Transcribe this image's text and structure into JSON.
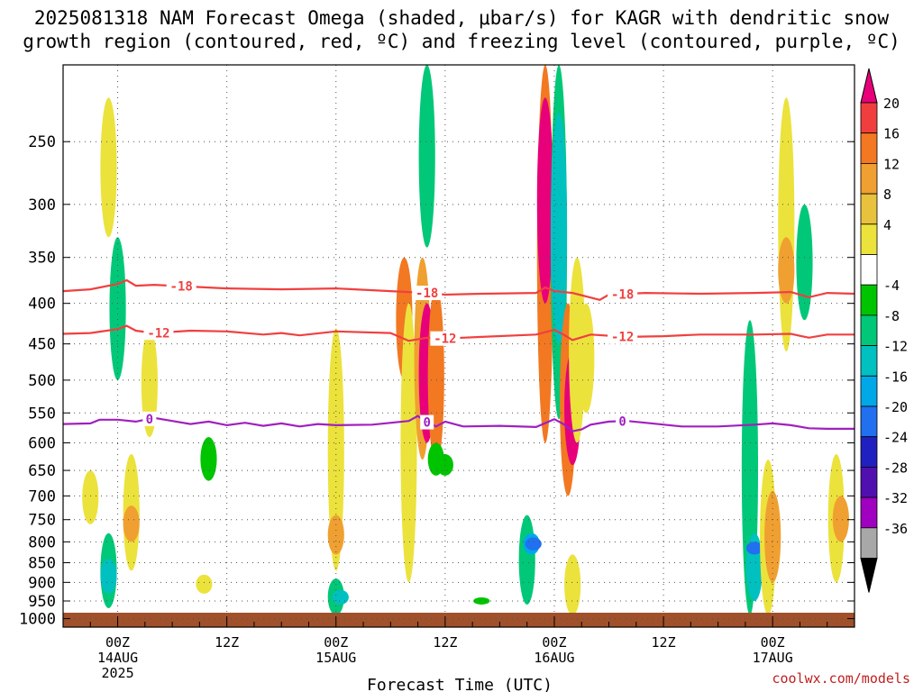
{
  "title": {
    "line1": "2025081318 NAM Forecast Omega (shaded, μbar/s) for KAGR with dendritic snow",
    "line2": "growth region (contoured, red, ºC) and freezing level (contoured, purple, ºC)"
  },
  "watermark": "coolwx.com/models",
  "chart_data": {
    "type": "heatmap",
    "title": "2025081318 NAM Forecast Omega (shaded, μbar/s) for KAGR with dendritic snow growth region (contoured, red, ºC) and freezing level (contoured, purple, ºC)",
    "xlabel": "Forecast Time (UTC)",
    "ylabel": "",
    "x_start_hour": 0,
    "x_end_hour": 87,
    "x_ticks": [
      {
        "hour": 6,
        "label": "00Z",
        "sub1": "14AUG",
        "sub2": "2025"
      },
      {
        "hour": 18,
        "label": "12Z",
        "sub1": "",
        "sub2": ""
      },
      {
        "hour": 30,
        "label": "00Z",
        "sub1": "15AUG",
        "sub2": ""
      },
      {
        "hour": 42,
        "label": "12Z",
        "sub1": "",
        "sub2": ""
      },
      {
        "hour": 54,
        "label": "00Z",
        "sub1": "16AUG",
        "sub2": ""
      },
      {
        "hour": 66,
        "label": "12Z",
        "sub1": "",
        "sub2": ""
      },
      {
        "hour": 78,
        "label": "00Z",
        "sub1": "17AUG",
        "sub2": ""
      }
    ],
    "y_axis": {
      "scale": "log-pressure",
      "top": 200,
      "bottom": 1025,
      "ticks": [
        "250",
        "300",
        "350",
        "400",
        "450",
        "500",
        "550",
        "600",
        "650",
        "700",
        "750",
        "800",
        "850",
        "900",
        "950",
        "1000"
      ]
    },
    "colorbar": {
      "labels": [
        "20",
        "16",
        "12",
        "8",
        "4",
        "-4",
        "-8",
        "-12",
        "-16",
        "-20",
        "-24",
        "-28",
        "-32",
        "-36"
      ],
      "colors": [
        "#e8007a",
        "#f03e3e",
        "#f27822",
        "#f0a030",
        "#e8c23c",
        "#ece23c",
        "#ffffff",
        "#00c400",
        "#00c878",
        "#00c0c0",
        "#00a8e8",
        "#2070f0",
        "#2020c0",
        "#5010b0",
        "#a000c0",
        "#a8a8a8",
        "#000000"
      ]
    },
    "ground_color": "#a0502a",
    "omega_cells": [
      {
        "t": 3,
        "p0": 650,
        "p1": 760,
        "v": 4
      },
      {
        "t": 5,
        "p0": 220,
        "p1": 330,
        "v": 4
      },
      {
        "t": 5,
        "p0": 780,
        "p1": 970,
        "v": -10
      },
      {
        "t": 5,
        "p0": 840,
        "p1": 930,
        "v": -14
      },
      {
        "t": 6,
        "p0": 330,
        "p1": 500,
        "v": -8
      },
      {
        "t": 7.5,
        "p0": 620,
        "p1": 870,
        "v": 4
      },
      {
        "t": 7.5,
        "p0": 720,
        "p1": 800,
        "v": 10
      },
      {
        "t": 9.5,
        "p0": 430,
        "p1": 590,
        "v": 4
      },
      {
        "t": 15.5,
        "p0": 880,
        "p1": 930,
        "v": 4
      },
      {
        "t": 16,
        "p0": 590,
        "p1": 670,
        "v": -6
      },
      {
        "t": 30,
        "p0": 430,
        "p1": 870,
        "v": 4
      },
      {
        "t": 30,
        "p0": 740,
        "p1": 830,
        "v": 10
      },
      {
        "t": 30,
        "p0": 890,
        "p1": 990,
        "v": -8
      },
      {
        "t": 30.5,
        "p0": 920,
        "p1": 960,
        "v": -12
      },
      {
        "t": 37.5,
        "p0": 350,
        "p1": 500,
        "v": 12
      },
      {
        "t": 38,
        "p0": 400,
        "p1": 900,
        "v": 4
      },
      {
        "t": 39.5,
        "p0": 350,
        "p1": 630,
        "v": 8
      },
      {
        "t": 40,
        "p0": 200,
        "p1": 340,
        "v": -8
      },
      {
        "t": 40,
        "p0": 400,
        "p1": 600,
        "v": 20
      },
      {
        "t": 41,
        "p0": 380,
        "p1": 640,
        "v": 12
      },
      {
        "t": 41,
        "p0": 600,
        "p1": 660,
        "v": -6
      },
      {
        "t": 42,
        "p0": 620,
        "p1": 660,
        "v": -6
      },
      {
        "t": 46,
        "p0": 940,
        "p1": 960,
        "v": -6
      },
      {
        "t": 51,
        "p0": 740,
        "p1": 960,
        "v": -10
      },
      {
        "t": 51.5,
        "p0": 780,
        "p1": 830,
        "v": -18
      },
      {
        "t": 51.7,
        "p0": 790,
        "p1": 820,
        "v": -22
      },
      {
        "t": 53,
        "p0": 200,
        "p1": 600,
        "v": 14
      },
      {
        "t": 53,
        "p0": 220,
        "p1": 400,
        "v": 20
      },
      {
        "t": 54.5,
        "p0": 200,
        "p1": 560,
        "v": -8
      },
      {
        "t": 54.5,
        "p0": 230,
        "p1": 450,
        "v": -12
      },
      {
        "t": 55.5,
        "p0": 400,
        "p1": 700,
        "v": 12
      },
      {
        "t": 56,
        "p0": 460,
        "p1": 640,
        "v": 20
      },
      {
        "t": 56.5,
        "p0": 350,
        "p1": 600,
        "v": 4
      },
      {
        "t": 57.5,
        "p0": 400,
        "p1": 550,
        "v": 4
      },
      {
        "t": 56,
        "p0": 830,
        "p1": 990,
        "v": 4
      },
      {
        "t": 75.5,
        "p0": 420,
        "p1": 990,
        "v": -8
      },
      {
        "t": 76,
        "p0": 780,
        "p1": 950,
        "v": -12
      },
      {
        "t": 76,
        "p0": 800,
        "p1": 830,
        "v": -20
      },
      {
        "t": 77.5,
        "p0": 630,
        "p1": 990,
        "v": 6
      },
      {
        "t": 78,
        "p0": 690,
        "p1": 900,
        "v": 10
      },
      {
        "t": 79.5,
        "p0": 220,
        "p1": 460,
        "v": 4
      },
      {
        "t": 79.5,
        "p0": 330,
        "p1": 400,
        "v": 8
      },
      {
        "t": 81.5,
        "p0": 300,
        "p1": 420,
        "v": -8
      },
      {
        "t": 85,
        "p0": 620,
        "p1": 900,
        "v": 4
      },
      {
        "t": 85.5,
        "p0": 700,
        "p1": 800,
        "v": 8
      }
    ],
    "contours": [
      {
        "name": "-18",
        "color": "#f04040",
        "label_hours": [
          13,
          40,
          61.5
        ],
        "points": [
          [
            0,
            386
          ],
          [
            3,
            384
          ],
          [
            6,
            378
          ],
          [
            7,
            374
          ],
          [
            8,
            380
          ],
          [
            10,
            379
          ],
          [
            14,
            381
          ],
          [
            18,
            383
          ],
          [
            24,
            384
          ],
          [
            30,
            383
          ],
          [
            36,
            386
          ],
          [
            40,
            388
          ],
          [
            42,
            390
          ],
          [
            46,
            389
          ],
          [
            52,
            388
          ],
          [
            53,
            382
          ],
          [
            54,
            386
          ],
          [
            56,
            388
          ],
          [
            59,
            396
          ],
          [
            60,
            390
          ],
          [
            64,
            388
          ],
          [
            70,
            389
          ],
          [
            76,
            388
          ],
          [
            80,
            387
          ],
          [
            82,
            393
          ],
          [
            84,
            388
          ],
          [
            87,
            389
          ]
        ]
      },
      {
        "name": "-12",
        "color": "#f04040",
        "label_hours": [
          10.5,
          42,
          61.5
        ],
        "points": [
          [
            0,
            437
          ],
          [
            3,
            436
          ],
          [
            6,
            431
          ],
          [
            7,
            427
          ],
          [
            8,
            433
          ],
          [
            10,
            436
          ],
          [
            14,
            433
          ],
          [
            18,
            434
          ],
          [
            22,
            438
          ],
          [
            24,
            436
          ],
          [
            26,
            439
          ],
          [
            30,
            434
          ],
          [
            36,
            436
          ],
          [
            38,
            446
          ],
          [
            40,
            442
          ],
          [
            42,
            443
          ],
          [
            46,
            441
          ],
          [
            52,
            438
          ],
          [
            54,
            432
          ],
          [
            55,
            438
          ],
          [
            56,
            445
          ],
          [
            58,
            438
          ],
          [
            62,
            441
          ],
          [
            66,
            440
          ],
          [
            70,
            438
          ],
          [
            76,
            438
          ],
          [
            80,
            437
          ],
          [
            82,
            442
          ],
          [
            84,
            438
          ],
          [
            87,
            438
          ]
        ]
      },
      {
        "name": "0",
        "color": "#a020c0",
        "label_hours": [
          9.5,
          40,
          61.5
        ],
        "points": [
          [
            0,
            568
          ],
          [
            3,
            567
          ],
          [
            4,
            561
          ],
          [
            6,
            561
          ],
          [
            8,
            564
          ],
          [
            10,
            558
          ],
          [
            12,
            563
          ],
          [
            14,
            568
          ],
          [
            16,
            564
          ],
          [
            18,
            570
          ],
          [
            20,
            566
          ],
          [
            22,
            571
          ],
          [
            24,
            567
          ],
          [
            26,
            572
          ],
          [
            28,
            568
          ],
          [
            30,
            570
          ],
          [
            34,
            569
          ],
          [
            38,
            563
          ],
          [
            39,
            555
          ],
          [
            40,
            565
          ],
          [
            41,
            572
          ],
          [
            42,
            564
          ],
          [
            44,
            572
          ],
          [
            48,
            571
          ],
          [
            52,
            573
          ],
          [
            54,
            560
          ],
          [
            55,
            568
          ],
          [
            56,
            580
          ],
          [
            57,
            577
          ],
          [
            58,
            569
          ],
          [
            60,
            564
          ],
          [
            62,
            563
          ],
          [
            64,
            566
          ],
          [
            68,
            572
          ],
          [
            72,
            572
          ],
          [
            76,
            569
          ],
          [
            78,
            567
          ],
          [
            80,
            570
          ],
          [
            82,
            575
          ],
          [
            84,
            576
          ],
          [
            87,
            576
          ]
        ]
      }
    ]
  }
}
